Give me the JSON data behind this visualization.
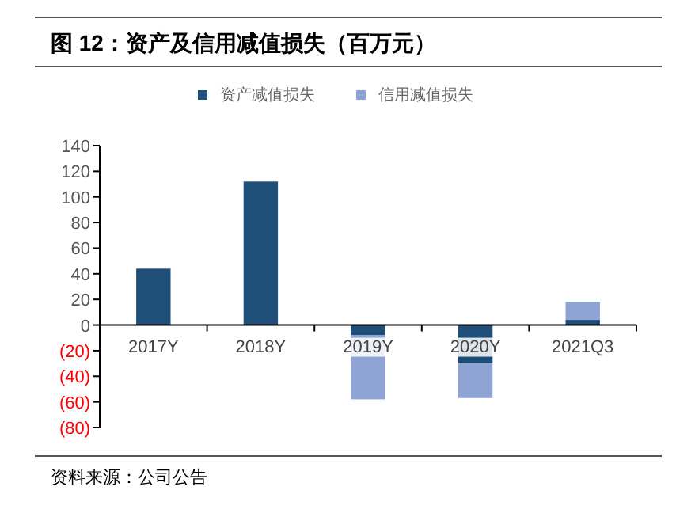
{
  "chart_data": {
    "type": "bar",
    "title": "图 12：资产及信用减值损失（百万元）",
    "annotations": [
      "资料来源：公司公告"
    ],
    "categories": [
      "2017Y",
      "2018Y",
      "2019Y",
      "2020Y",
      "2021Q3"
    ],
    "stacked": true,
    "legend": "top",
    "series": [
      {
        "name": "资产减值损失",
        "color": "#1f4e79",
        "values": [
          44,
          112,
          -8,
          -30,
          4
        ]
      },
      {
        "name": "信用减值损失",
        "color": "#8fa4d4",
        "values": [
          0,
          0,
          -50,
          -27,
          14
        ]
      }
    ],
    "ylim": [
      -80,
      140
    ],
    "yticks": [
      {
        "value": -80,
        "label": "(80)"
      },
      {
        "value": -60,
        "label": "(60)"
      },
      {
        "value": -40,
        "label": "(40)"
      },
      {
        "value": -20,
        "label": "(20)"
      },
      0,
      20,
      40,
      60,
      80,
      100,
      120,
      140
    ]
  }
}
